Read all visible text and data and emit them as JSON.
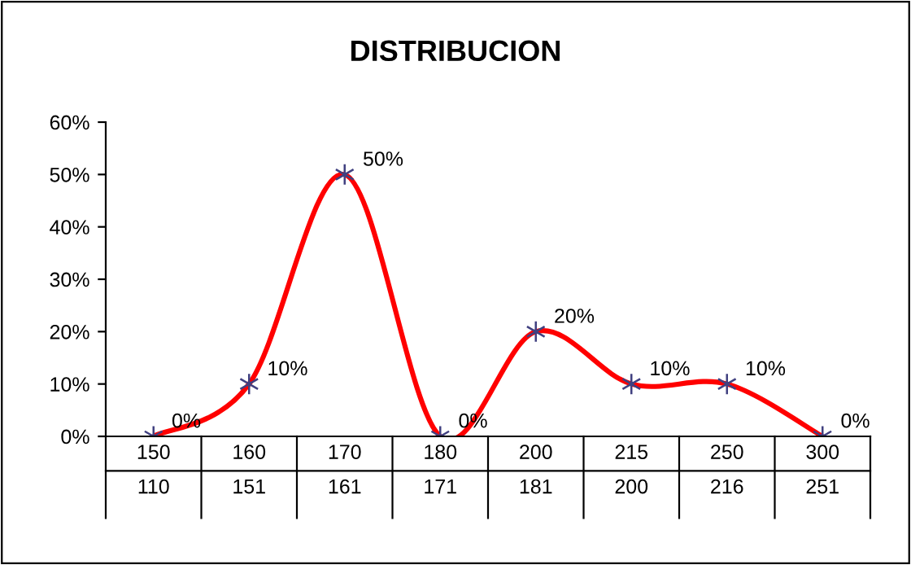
{
  "chart_data": {
    "type": "line",
    "title": "DISTRIBUCION",
    "categories": [
      "150\n110",
      "160\n151",
      "170\n161",
      "180\n171",
      "200\n181",
      "215\n200",
      "250\n216",
      "300\n251"
    ],
    "series": [
      {
        "color": "#ff0000",
        "values": [
          0,
          10,
          50,
          0,
          20,
          10,
          10,
          0
        ],
        "value_labels": [
          "0%",
          "10%",
          "50%",
          "0%",
          "20%",
          "10%",
          "10%",
          "0%"
        ]
      }
    ],
    "ylim": [
      0,
      60
    ],
    "yticks": [
      {
        "value": 0,
        "label": "0%"
      },
      {
        "value": 10,
        "label": "10%"
      },
      {
        "value": 20,
        "label": "20%"
      },
      {
        "value": 30,
        "label": "30%"
      },
      {
        "value": 40,
        "label": "40%"
      },
      {
        "value": 50,
        "label": "50%"
      },
      {
        "value": 60,
        "label": "60%"
      }
    ],
    "grid": false,
    "legend": false,
    "marker": "cross",
    "line_style": "solid"
  }
}
